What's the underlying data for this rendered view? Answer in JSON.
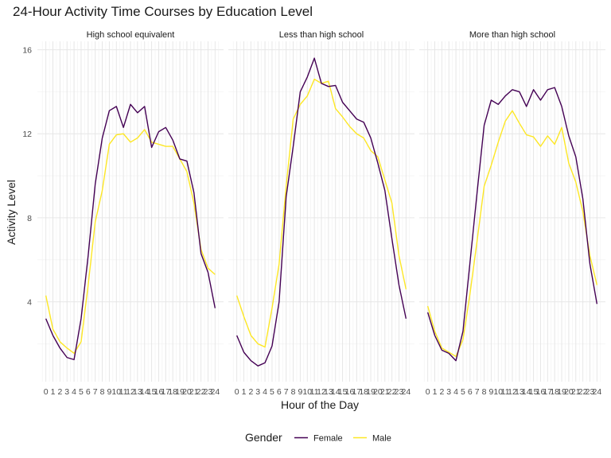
{
  "chart_data": {
    "type": "line",
    "title": "24-Hour Activity Time Courses by Education Level",
    "xlabel": "Hour of the Day",
    "ylabel": "Activity Level",
    "x": [
      0,
      1,
      2,
      3,
      4,
      5,
      6,
      7,
      8,
      9,
      10,
      11,
      12,
      13,
      14,
      15,
      16,
      17,
      18,
      19,
      20,
      21,
      22,
      23,
      24
    ],
    "x_tick_labels": [
      "0",
      "1",
      "2",
      "3",
      "4",
      "5",
      "6",
      "7",
      "8",
      "9",
      "10",
      "11",
      "12",
      "13",
      "14",
      "15",
      "16",
      "17",
      "18",
      "19",
      "20",
      "21",
      "22",
      "23",
      "24"
    ],
    "ylim": [
      0.2,
      16.4
    ],
    "y_ticks": [
      4,
      8,
      12,
      16
    ],
    "grid": true,
    "legend": {
      "title": "Gender",
      "position": "bottom"
    },
    "colors": {
      "Female": "#440154",
      "Male": "#fde725"
    },
    "panels": [
      {
        "label": "High school equivalent",
        "series": [
          {
            "name": "Female",
            "values": [
              3.2,
              2.4,
              1.8,
              1.35,
              1.25,
              3.2,
              6.2,
              9.6,
              11.8,
              13.1,
              13.3,
              12.3,
              13.4,
              13.0,
              13.3,
              11.35,
              12.1,
              12.3,
              11.7,
              10.8,
              10.7,
              9.2,
              6.3,
              5.4,
              3.7
            ]
          },
          {
            "name": "Male",
            "values": [
              4.3,
              2.7,
              2.1,
              1.8,
              1.55,
              2.1,
              4.8,
              7.8,
              9.3,
              11.5,
              11.95,
              12.0,
              11.6,
              11.8,
              12.2,
              11.6,
              11.5,
              11.4,
              11.4,
              10.8,
              10.2,
              8.7,
              6.5,
              5.6,
              5.3
            ]
          }
        ]
      },
      {
        "label": "Less than high school",
        "series": [
          {
            "name": "Female",
            "values": [
              2.4,
              1.6,
              1.2,
              0.95,
              1.1,
              1.9,
              4.0,
              9.0,
              11.4,
              14.0,
              14.7,
              15.6,
              14.4,
              14.25,
              14.3,
              13.5,
              13.1,
              12.7,
              12.55,
              11.8,
              10.6,
              9.3,
              7.0,
              4.8,
              3.2
            ]
          },
          {
            "name": "Male",
            "values": [
              4.3,
              3.3,
              2.4,
              2.0,
              1.85,
              3.7,
              5.8,
              9.5,
              12.7,
              13.4,
              13.8,
              14.6,
              14.4,
              14.5,
              13.2,
              12.8,
              12.35,
              12.0,
              11.8,
              11.2,
              10.9,
              9.8,
              8.7,
              6.2,
              4.6
            ]
          }
        ]
      },
      {
        "label": "More than high school",
        "series": [
          {
            "name": "Female",
            "values": [
              3.5,
              2.4,
              1.7,
              1.55,
              1.2,
              2.6,
              5.9,
              9.2,
              12.4,
              13.6,
              13.4,
              13.8,
              14.1,
              14.0,
              13.3,
              14.1,
              13.6,
              14.1,
              14.2,
              13.3,
              11.9,
              10.9,
              8.9,
              5.8,
              3.9
            ]
          },
          {
            "name": "Male",
            "values": [
              3.8,
              2.6,
              1.8,
              1.6,
              1.4,
              2.2,
              4.4,
              6.9,
              9.5,
              10.5,
              11.6,
              12.6,
              13.1,
              12.5,
              11.95,
              11.85,
              11.4,
              11.9,
              11.5,
              12.3,
              10.6,
              9.7,
              8.3,
              6.2,
              4.8
            ]
          }
        ]
      }
    ]
  }
}
